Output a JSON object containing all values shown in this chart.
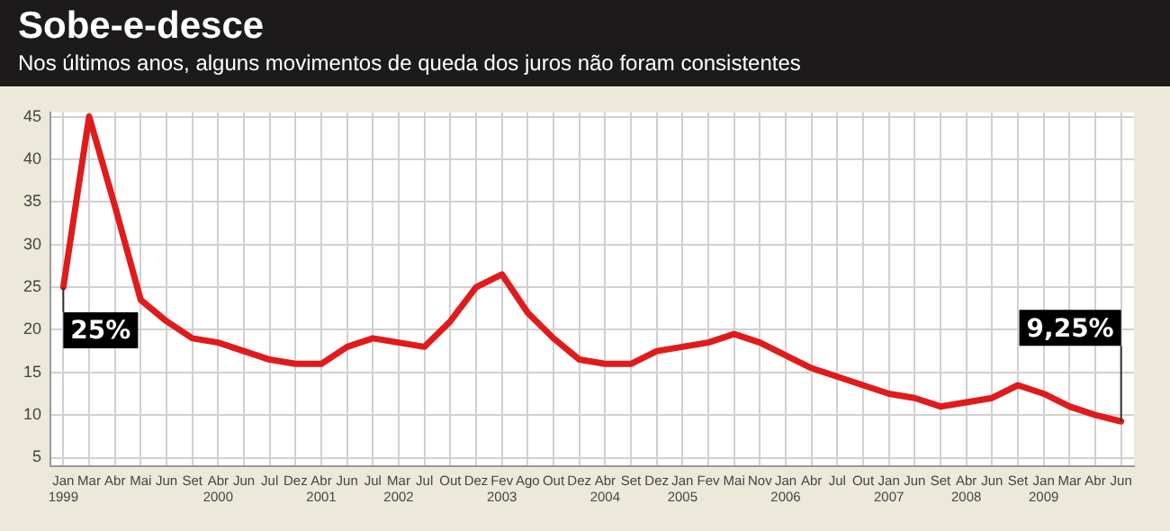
{
  "chart_data": {
    "type": "line",
    "title": "Sobe-e-desce",
    "subtitle": "Nos últimos anos, alguns movimentos de queda dos juros não foram consistentes",
    "categories": [
      "Jan 1999",
      "Mar",
      "Abr",
      "Mai",
      "Jun",
      "Set",
      "Abr 2000",
      "Jun",
      "Jul",
      "Dez",
      "Abr 2001",
      "Jun",
      "Jul",
      "Mar 2002",
      "Jul",
      "Out",
      "Dez",
      "Fev 2003",
      "Ago",
      "Out",
      "Dez",
      "Abr 2004",
      "Set",
      "Dez",
      "Jan 2005",
      "Fev",
      "Mai",
      "Nov",
      "Jan 2006",
      "Abr",
      "Jul",
      "Out",
      "Jan 2007",
      "Jun",
      "Set",
      "Abr 2008",
      "Jun",
      "Set",
      "Jan 2009",
      "Mar",
      "Abr",
      "Jun"
    ],
    "series": [
      {
        "color": "#e01b1b",
        "values": [
          25,
          45,
          34.5,
          23.5,
          21,
          19,
          18.5,
          17.5,
          16.5,
          16,
          16,
          18,
          19,
          18.5,
          18,
          21,
          25,
          26.5,
          22,
          19,
          16.5,
          16,
          16,
          17.5,
          18,
          18.5,
          19.5,
          18.5,
          17,
          15.5,
          14.5,
          13.5,
          12.5,
          12,
          11,
          11.5,
          12,
          13.5,
          12.5,
          11,
          10,
          9.25
        ],
        "value_labels": [
          "25%",
          null,
          null,
          null,
          null,
          null,
          null,
          null,
          null,
          null,
          null,
          null,
          null,
          null,
          null,
          null,
          null,
          null,
          null,
          null,
          null,
          null,
          null,
          null,
          null,
          null,
          null,
          null,
          null,
          null,
          null,
          null,
          null,
          null,
          null,
          null,
          null,
          null,
          null,
          null,
          null,
          "9,25%"
        ]
      }
    ],
    "ylim": [
      4,
      45.5
    ],
    "yticks": [
      5,
      10,
      15,
      20,
      25,
      30,
      35,
      40,
      45
    ],
    "grid": true,
    "legend": false,
    "marker": "none",
    "line_style": "solid"
  }
}
